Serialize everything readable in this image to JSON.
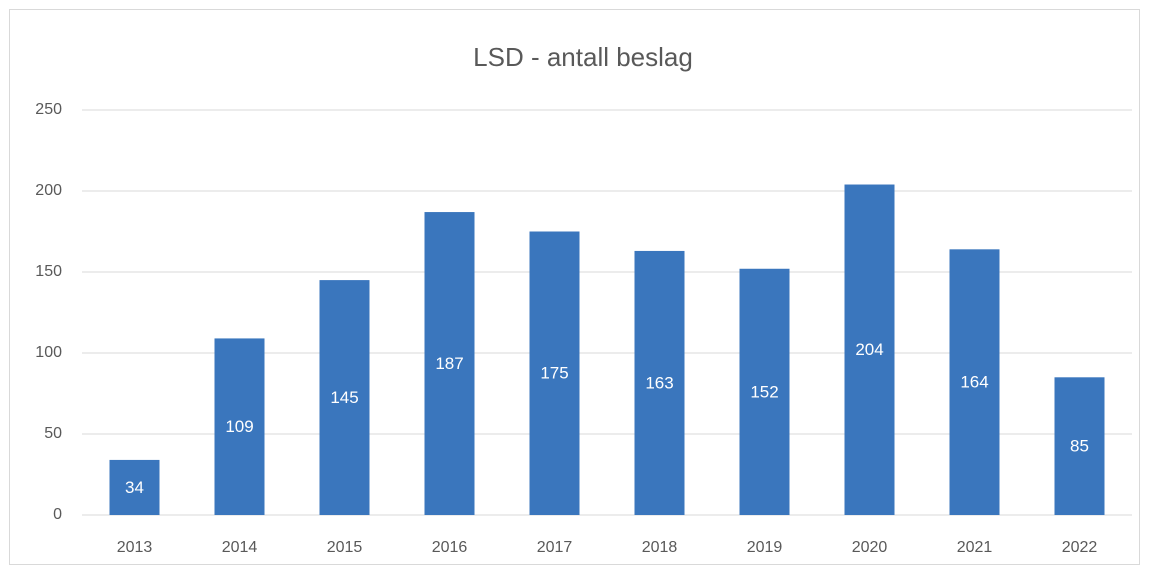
{
  "chart_data": {
    "type": "bar",
    "title": "LSD - antall beslag",
    "categories": [
      "2013",
      "2014",
      "2015",
      "2016",
      "2017",
      "2018",
      "2019",
      "2020",
      "2021",
      "2022"
    ],
    "values": [
      34,
      109,
      145,
      187,
      175,
      163,
      152,
      204,
      164,
      85
    ],
    "color": "#3a76bd",
    "ylim": [
      0,
      250
    ],
    "yticks": [
      0,
      50,
      100,
      150,
      200,
      250
    ],
    "grid": true,
    "data_labels": true
  }
}
